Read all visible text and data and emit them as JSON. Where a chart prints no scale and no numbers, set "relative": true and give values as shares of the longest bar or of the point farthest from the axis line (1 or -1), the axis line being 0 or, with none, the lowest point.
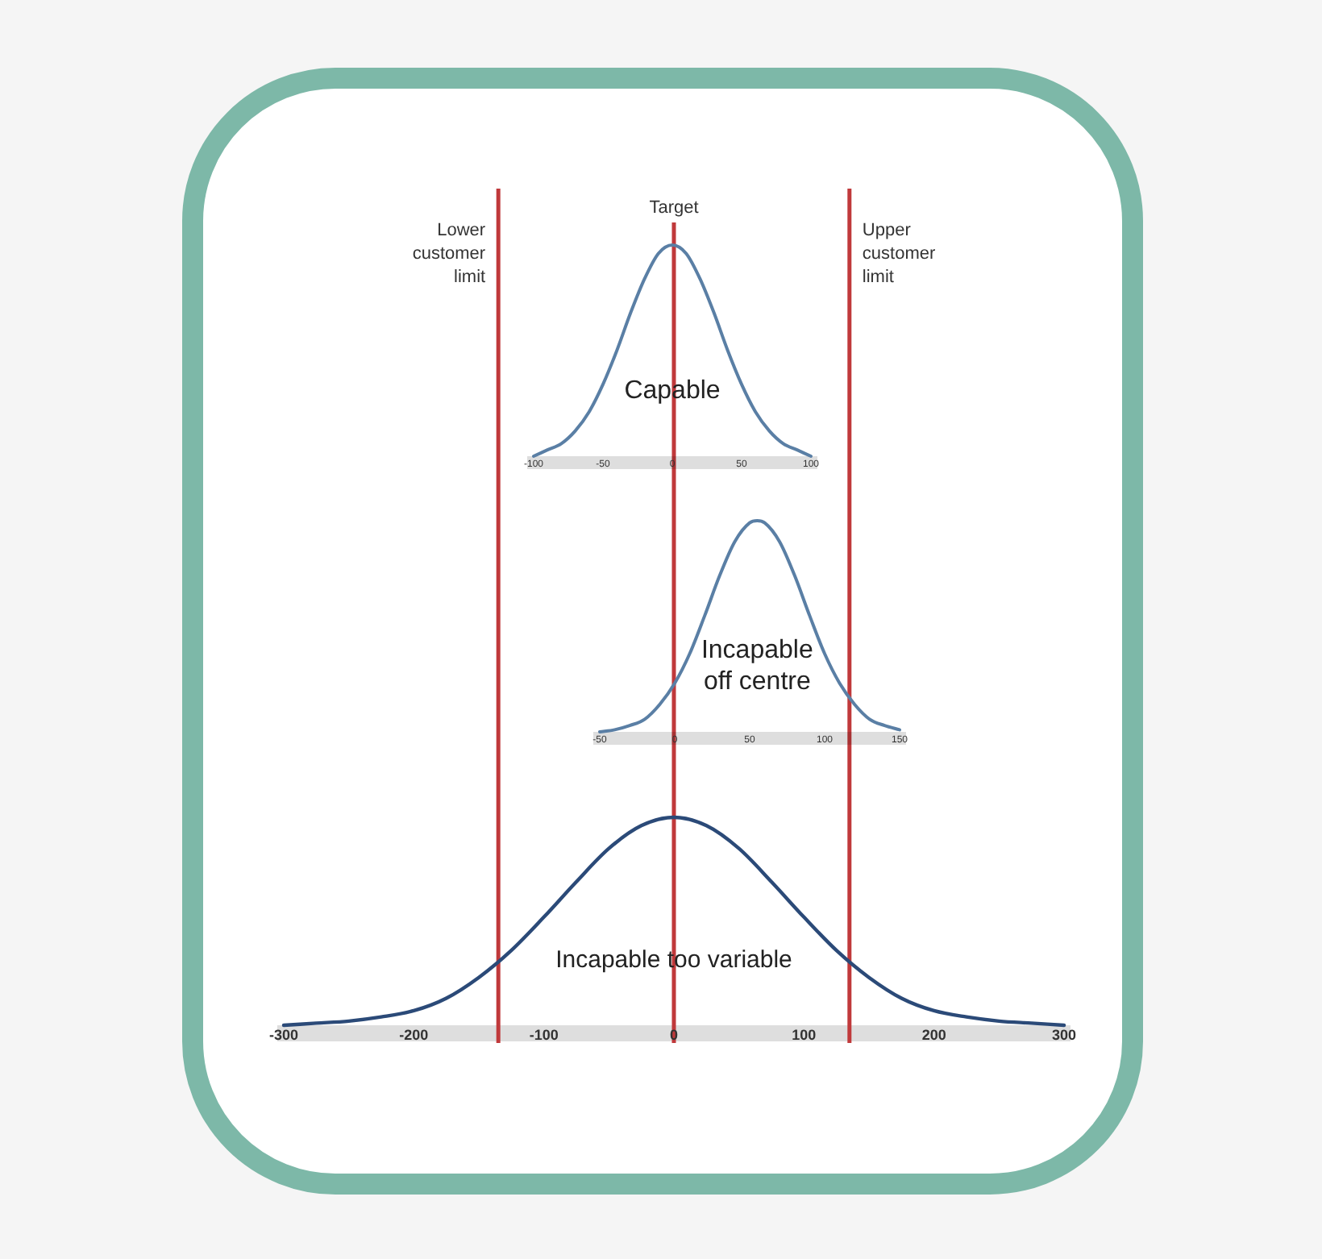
{
  "chart_data": [
    {
      "type": "line",
      "x": [
        -100,
        -90,
        -80,
        -70,
        -60,
        -50,
        -40,
        -30,
        -20,
        -10,
        0,
        10,
        20,
        30,
        40,
        50,
        60,
        70,
        80,
        90,
        100
      ],
      "values": [
        0,
        0.03,
        0.06,
        0.12,
        0.21,
        0.34,
        0.5,
        0.68,
        0.84,
        0.96,
        1,
        0.96,
        0.84,
        0.68,
        0.5,
        0.34,
        0.21,
        0.12,
        0.06,
        0.03,
        0
      ],
      "color": "#5a7fa5",
      "relative": true,
      "xlim": [
        -100,
        100
      ],
      "xticks": [
        -100,
        -50,
        0,
        50,
        100
      ],
      "annotations": [
        "Capable"
      ]
    },
    {
      "type": "line",
      "x": [
        -50,
        -40,
        -30,
        -20,
        -10,
        0,
        10,
        20,
        30,
        40,
        50,
        55,
        60,
        70,
        80,
        90,
        100,
        110,
        120,
        130,
        140,
        150
      ],
      "values": [
        0,
        0.01,
        0.03,
        0.06,
        0.13,
        0.23,
        0.37,
        0.55,
        0.74,
        0.9,
        0.99,
        1,
        0.99,
        0.9,
        0.74,
        0.55,
        0.37,
        0.23,
        0.13,
        0.06,
        0.03,
        0.01
      ],
      "color": "#5a7fa5",
      "relative": true,
      "xlim": [
        -50,
        150
      ],
      "xticks": [
        -50,
        0,
        50,
        100,
        150
      ],
      "annotations": [
        "Incapable off centre"
      ]
    },
    {
      "type": "line",
      "x": [
        -300,
        -275,
        -250,
        -225,
        -200,
        -175,
        -150,
        -125,
        -100,
        -75,
        -50,
        -25,
        0,
        25,
        50,
        75,
        100,
        125,
        150,
        175,
        200,
        225,
        250,
        275,
        300
      ],
      "values": [
        0,
        0.01,
        0.02,
        0.04,
        0.07,
        0.13,
        0.23,
        0.36,
        0.52,
        0.69,
        0.85,
        0.96,
        1,
        0.96,
        0.85,
        0.69,
        0.52,
        0.36,
        0.23,
        0.13,
        0.07,
        0.04,
        0.02,
        0.01,
        0
      ],
      "color": "#2b4a78",
      "relative": true,
      "xlim": [
        -300,
        300
      ],
      "xticks": [
        -300,
        -200,
        -100,
        0,
        100,
        200,
        300
      ],
      "ref_lines": [
        {
          "axis": "x",
          "value": -135,
          "label": "Lower customer limit",
          "color": "#c0393b"
        },
        {
          "axis": "x",
          "value": 0,
          "label": "Target",
          "color": "#c0393b"
        },
        {
          "axis": "x",
          "value": 135,
          "label": "Upper customer limit",
          "color": "#c0393b"
        }
      ],
      "annotations": [
        "Incapable too variable"
      ]
    }
  ]
}
